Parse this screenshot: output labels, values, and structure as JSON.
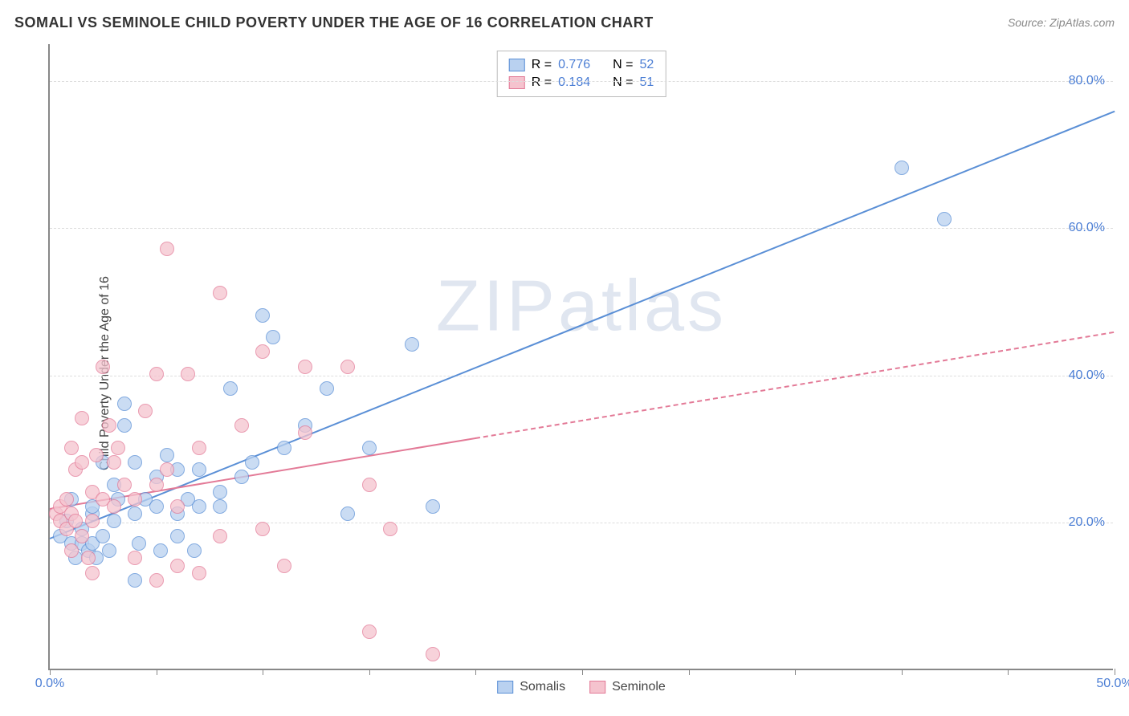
{
  "title": "SOMALI VS SEMINOLE CHILD POVERTY UNDER THE AGE OF 16 CORRELATION CHART",
  "source": "Source: ZipAtlas.com",
  "watermark": "ZIPatlas",
  "chart": {
    "type": "scatter",
    "ylabel": "Child Poverty Under the Age of 16",
    "xlim": [
      0,
      50
    ],
    "ylim": [
      0,
      85
    ],
    "xtick_positions": [
      0,
      5,
      10,
      15,
      20,
      25,
      30,
      35,
      40,
      45,
      50
    ],
    "xtick_labels": {
      "0": "0.0%",
      "50": "50.0%"
    },
    "ytick_positions": [
      20,
      40,
      60,
      80
    ],
    "ytick_labels": {
      "20": "20.0%",
      "40": "40.0%",
      "60": "60.0%",
      "80": "80.0%"
    },
    "grid_color": "#dddddd",
    "axis_color": "#888888",
    "label_color": "#4a7dd4",
    "ylabel_fontsize": 16,
    "tick_fontsize": 16,
    "title_fontsize": 18,
    "background_color": "#ffffff",
    "marker_size": 16,
    "series": [
      {
        "name": "Somalis",
        "color_fill": "#b9d1f0",
        "color_border": "#5a8fd6",
        "R": 0.776,
        "N": 52,
        "regression": {
          "x1": 0,
          "y1": 18,
          "x2": 50,
          "y2": 76,
          "dashed_from": null
        },
        "points": [
          [
            0.5,
            18
          ],
          [
            0.8,
            20
          ],
          [
            1,
            17
          ],
          [
            1,
            23
          ],
          [
            1.2,
            15
          ],
          [
            1.5,
            19
          ],
          [
            1.5,
            17
          ],
          [
            1.8,
            16
          ],
          [
            2,
            17
          ],
          [
            2,
            21
          ],
          [
            2,
            22
          ],
          [
            2.2,
            15
          ],
          [
            2.5,
            18
          ],
          [
            2.5,
            28
          ],
          [
            2.8,
            16
          ],
          [
            3,
            20
          ],
          [
            3,
            25
          ],
          [
            3.2,
            23
          ],
          [
            3.5,
            36
          ],
          [
            3.5,
            33
          ],
          [
            4,
            12
          ],
          [
            4,
            21
          ],
          [
            4,
            28
          ],
          [
            4.2,
            17
          ],
          [
            4.5,
            23
          ],
          [
            5,
            26
          ],
          [
            5,
            22
          ],
          [
            5.2,
            16
          ],
          [
            5.5,
            29
          ],
          [
            6,
            21
          ],
          [
            6,
            18
          ],
          [
            6,
            27
          ],
          [
            6.5,
            23
          ],
          [
            6.8,
            16
          ],
          [
            7,
            22
          ],
          [
            7,
            27
          ],
          [
            8,
            24
          ],
          [
            8,
            22
          ],
          [
            8.5,
            38
          ],
          [
            9,
            26
          ],
          [
            9.5,
            28
          ],
          [
            10,
            48
          ],
          [
            10.5,
            45
          ],
          [
            11,
            30
          ],
          [
            12,
            33
          ],
          [
            13,
            38
          ],
          [
            14,
            21
          ],
          [
            15,
            30
          ],
          [
            17,
            44
          ],
          [
            18,
            22
          ],
          [
            40,
            68
          ],
          [
            42,
            61
          ]
        ]
      },
      {
        "name": "Seminole",
        "color_fill": "#f5c3ce",
        "color_border": "#e37a97",
        "R": 0.184,
        "N": 51,
        "regression": {
          "x1": 0,
          "y1": 22,
          "x2": 50,
          "y2": 46,
          "dashed_from": 20
        },
        "points": [
          [
            0.3,
            21
          ],
          [
            0.5,
            20
          ],
          [
            0.5,
            22
          ],
          [
            0.8,
            19
          ],
          [
            0.8,
            23
          ],
          [
            1,
            30
          ],
          [
            1,
            16
          ],
          [
            1,
            21
          ],
          [
            1.2,
            20
          ],
          [
            1.2,
            27
          ],
          [
            1.5,
            18
          ],
          [
            1.5,
            28
          ],
          [
            1.5,
            34
          ],
          [
            1.8,
            15
          ],
          [
            2,
            20
          ],
          [
            2,
            24
          ],
          [
            2,
            13
          ],
          [
            2.2,
            29
          ],
          [
            2.5,
            41
          ],
          [
            2.5,
            23
          ],
          [
            2.8,
            33
          ],
          [
            3,
            28
          ],
          [
            3,
            22
          ],
          [
            3.2,
            30
          ],
          [
            3.5,
            25
          ],
          [
            4,
            15
          ],
          [
            4,
            23
          ],
          [
            4.5,
            35
          ],
          [
            5,
            12
          ],
          [
            5,
            25
          ],
          [
            5,
            40
          ],
          [
            5.5,
            27
          ],
          [
            5.5,
            57
          ],
          [
            6,
            14
          ],
          [
            6,
            22
          ],
          [
            6.5,
            40
          ],
          [
            7,
            13
          ],
          [
            7,
            30
          ],
          [
            8,
            51
          ],
          [
            8,
            18
          ],
          [
            9,
            33
          ],
          [
            10,
            19
          ],
          [
            10,
            43
          ],
          [
            11,
            14
          ],
          [
            12,
            32
          ],
          [
            12,
            41
          ],
          [
            14,
            41
          ],
          [
            15,
            25
          ],
          [
            15,
            5
          ],
          [
            16,
            19
          ],
          [
            18,
            2
          ]
        ]
      }
    ],
    "legend_top": {
      "rows": [
        {
          "swatch": 0,
          "r_label": "R =",
          "r_value": "0.776",
          "n_label": "N =",
          "n_value": "52"
        },
        {
          "swatch": 1,
          "r_label": "R =",
          "r_value": "0.184",
          "n_label": "N =",
          "n_value": "51"
        }
      ]
    },
    "legend_bottom": [
      {
        "swatch": 0,
        "label": "Somalis"
      },
      {
        "swatch": 1,
        "label": "Seminole"
      }
    ]
  }
}
